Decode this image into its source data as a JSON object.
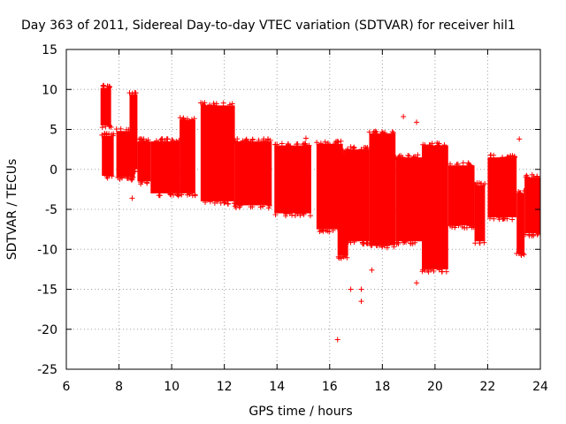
{
  "chart_data": {
    "type": "scatter",
    "title": "Day 363 of 2011, Sidereal Day-to-day VTEC variation (SDTVAR) for receiver hil1",
    "xlabel": "GPS time / hours",
    "ylabel": "SDTVAR / TECUs",
    "xlim": [
      6,
      24
    ],
    "ylim": [
      -25,
      15
    ],
    "xticks": [
      "6",
      "8",
      "10",
      "12",
      "14",
      "16",
      "18",
      "20",
      "22",
      "24"
    ],
    "yticks": [
      "-25",
      "-20",
      "-15",
      "-10",
      "-5",
      "0",
      "5",
      "10",
      "15"
    ],
    "grid": true,
    "marker": "+",
    "color": "#ff0000",
    "series": [
      {
        "name": "hil1",
        "segments": [
          {
            "x0": 7.3,
            "x1": 7.7,
            "ymin": 5.5,
            "ymax": 10.2
          },
          {
            "x0": 7.35,
            "x1": 7.8,
            "ymin": -0.8,
            "ymax": 4.2
          },
          {
            "x0": 7.9,
            "x1": 8.6,
            "ymin": -1.0,
            "ymax": 4.8
          },
          {
            "x0": 8.4,
            "x1": 8.7,
            "ymin": 0.0,
            "ymax": 9.4
          },
          {
            "x0": 8.7,
            "x1": 9.2,
            "ymin": -1.5,
            "ymax": 3.5
          },
          {
            "x0": 9.2,
            "x1": 10.3,
            "ymin": -3.0,
            "ymax": 3.5
          },
          {
            "x0": 10.3,
            "x1": 10.9,
            "ymin": -3.0,
            "ymax": 6.2
          },
          {
            "x0": 11.1,
            "x1": 12.4,
            "ymin": -4.0,
            "ymax": 8.0
          },
          {
            "x0": 12.4,
            "x1": 13.8,
            "ymin": -4.5,
            "ymax": 3.5
          },
          {
            "x0": 13.9,
            "x1": 15.3,
            "ymin": -5.5,
            "ymax": 3.0
          },
          {
            "x0": 15.5,
            "x1": 16.5,
            "ymin": -7.5,
            "ymax": 3.2
          },
          {
            "x0": 16.3,
            "x1": 16.7,
            "ymin": -10.8,
            "ymax": 2.0
          },
          {
            "x0": 16.6,
            "x1": 17.5,
            "ymin": -9.0,
            "ymax": 2.5
          },
          {
            "x0": 17.5,
            "x1": 18.5,
            "ymin": -9.5,
            "ymax": 4.5
          },
          {
            "x0": 18.5,
            "x1": 19.5,
            "ymin": -9.0,
            "ymax": 1.5
          },
          {
            "x0": 19.5,
            "x1": 20.5,
            "ymin": -12.5,
            "ymax": 3.0
          },
          {
            "x0": 20.5,
            "x1": 21.5,
            "ymin": -7.0,
            "ymax": 0.5
          },
          {
            "x0": 21.5,
            "x1": 21.9,
            "ymin": -9.0,
            "ymax": -2.0
          },
          {
            "x0": 22.0,
            "x1": 23.1,
            "ymin": -6.0,
            "ymax": 1.5
          },
          {
            "x0": 23.1,
            "x1": 23.4,
            "ymin": -10.5,
            "ymax": -3.0
          },
          {
            "x0": 23.4,
            "x1": 24.0,
            "ymin": -8.0,
            "ymax": -1.0
          }
        ],
        "outliers": [
          [
            16.3,
            -21.3
          ],
          [
            16.8,
            -15.0
          ],
          [
            17.2,
            -15.0
          ],
          [
            17.2,
            -16.5
          ],
          [
            17.6,
            -12.6
          ],
          [
            19.3,
            -14.2
          ],
          [
            18.8,
            6.6
          ],
          [
            19.3,
            5.9
          ],
          [
            23.2,
            3.8
          ],
          [
            16.3,
            3.5
          ],
          [
            15.1,
            3.9
          ],
          [
            8.5,
            -3.6
          ],
          [
            17.2,
            2.5
          ],
          [
            17.7,
            -5.0
          ],
          [
            18.2,
            -8.0
          ]
        ]
      }
    ]
  }
}
